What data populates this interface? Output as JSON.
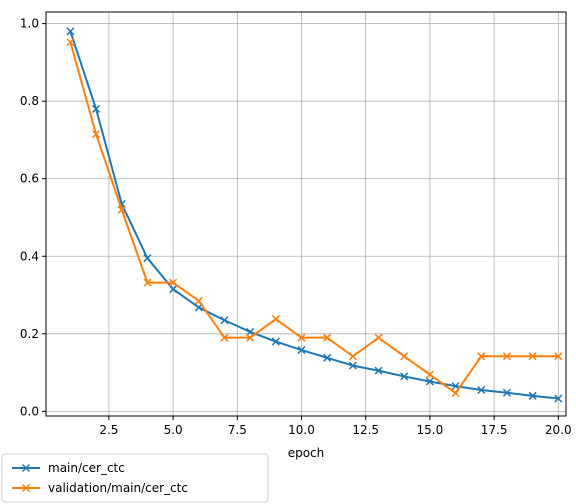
{
  "chart_data": {
    "type": "line",
    "xlabel": "epoch",
    "ylabel": "",
    "xlim": [
      0.05,
      20.3
    ],
    "ylim": [
      -0.012,
      1.03
    ],
    "grid": true,
    "legend_placement": "below-left",
    "x_ticks": [
      2.5,
      5.0,
      7.5,
      10.0,
      12.5,
      15.0,
      17.5,
      20.0
    ],
    "x_tick_labels": [
      "2.5",
      "5.0",
      "7.5",
      "10.0",
      "12.5",
      "15.0",
      "17.5",
      "20.0"
    ],
    "y_ticks": [
      0.0,
      0.2,
      0.4,
      0.6,
      0.8,
      1.0
    ],
    "y_tick_labels": [
      "0.0",
      "0.2",
      "0.4",
      "0.6",
      "0.8",
      "1.0"
    ],
    "x": [
      1,
      2,
      3,
      4,
      5,
      6,
      7,
      8,
      9,
      10,
      11,
      12,
      13,
      14,
      15,
      16,
      17,
      18,
      19,
      20
    ],
    "series": [
      {
        "name": "main/cer_ctc",
        "color": "#1f77b4",
        "marker": "x",
        "values": [
          0.98,
          0.78,
          0.535,
          0.395,
          0.315,
          0.268,
          0.235,
          0.205,
          0.18,
          0.158,
          0.138,
          0.118,
          0.105,
          0.09,
          0.077,
          0.065,
          0.055,
          0.048,
          0.04,
          0.033
        ]
      },
      {
        "name": "validation/main/cer_ctc",
        "color": "#ff7f0e",
        "marker": "x",
        "values": [
          0.952,
          0.715,
          0.52,
          0.332,
          0.332,
          0.285,
          0.19,
          0.19,
          0.238,
          0.19,
          0.19,
          0.142,
          0.19,
          0.142,
          0.095,
          0.047,
          0.142,
          0.142,
          0.142,
          0.142
        ]
      }
    ]
  }
}
